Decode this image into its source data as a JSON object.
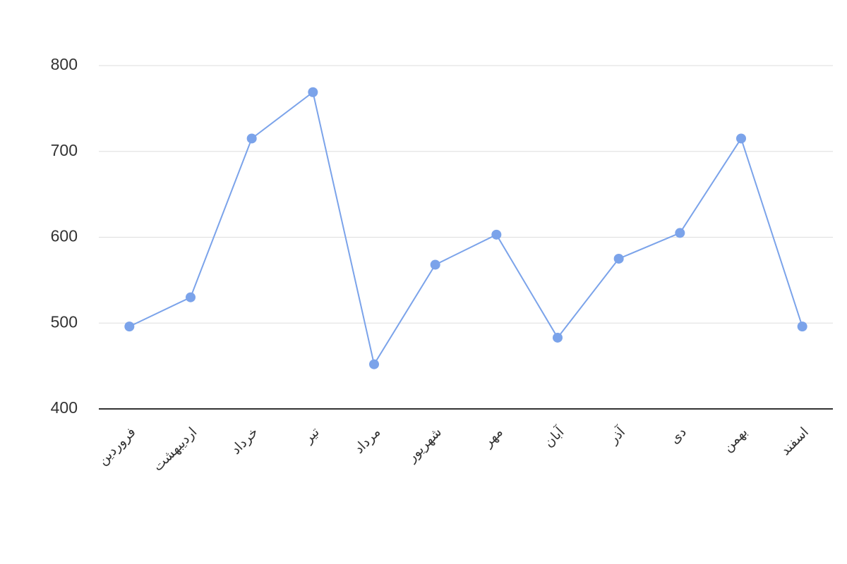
{
  "chart_data": {
    "type": "line",
    "categories": [
      "فروردین",
      "اردیبهشت",
      "خرداد",
      "تیر",
      "مرداد",
      "شهریور",
      "مهر",
      "آبان",
      "آذر",
      "دی",
      "بهمن",
      "اسفند"
    ],
    "values": [
      496,
      530,
      715,
      769,
      452,
      568,
      603,
      483,
      575,
      605,
      715,
      496
    ],
    "color": "#7ba3ea",
    "ylim": [
      400,
      800
    ],
    "yticks": [
      400,
      500,
      600,
      700,
      800
    ],
    "grid": true
  }
}
